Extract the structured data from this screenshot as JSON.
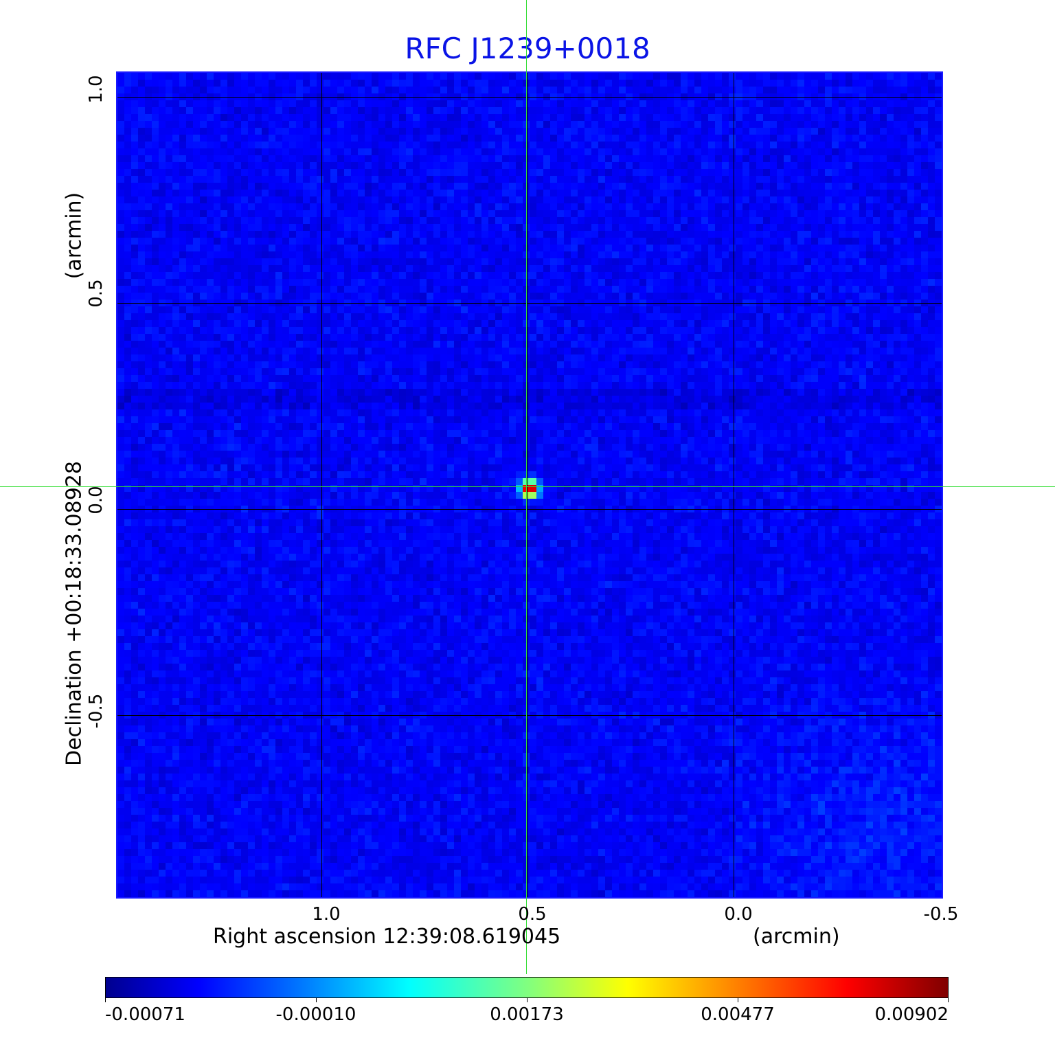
{
  "chart_data": {
    "type": "heatmap",
    "title": "RFC J1239+0018",
    "xlabel": "Right ascension  12:39:08.619045",
    "xunit": "(arcmin)",
    "ylabel": "Declination  +00:18:33.08928",
    "yunit": "(arcmin)",
    "xlim": [
      1.5,
      -0.5
    ],
    "ylim": [
      -0.94,
      1.06
    ],
    "x_ticks": [
      "1.0",
      "0.5",
      "0.0",
      "-0.5"
    ],
    "y_ticks": [
      "1.0",
      "0.5",
      "0.0",
      "-0.5"
    ],
    "grid": true,
    "colormap": "jet",
    "colorbar": {
      "range": [
        -0.00071,
        0.00902
      ],
      "ticks": [
        "-0.00071",
        "-0.00010",
        "0.00173",
        "0.00477",
        "0.00902"
      ],
      "placement": "bottom"
    },
    "source": {
      "ra_offset_arcmin": 0.5,
      "dec_offset_arcmin": 0.05,
      "peak": 0.00902
    },
    "crosshair_color": "#33dd33"
  }
}
